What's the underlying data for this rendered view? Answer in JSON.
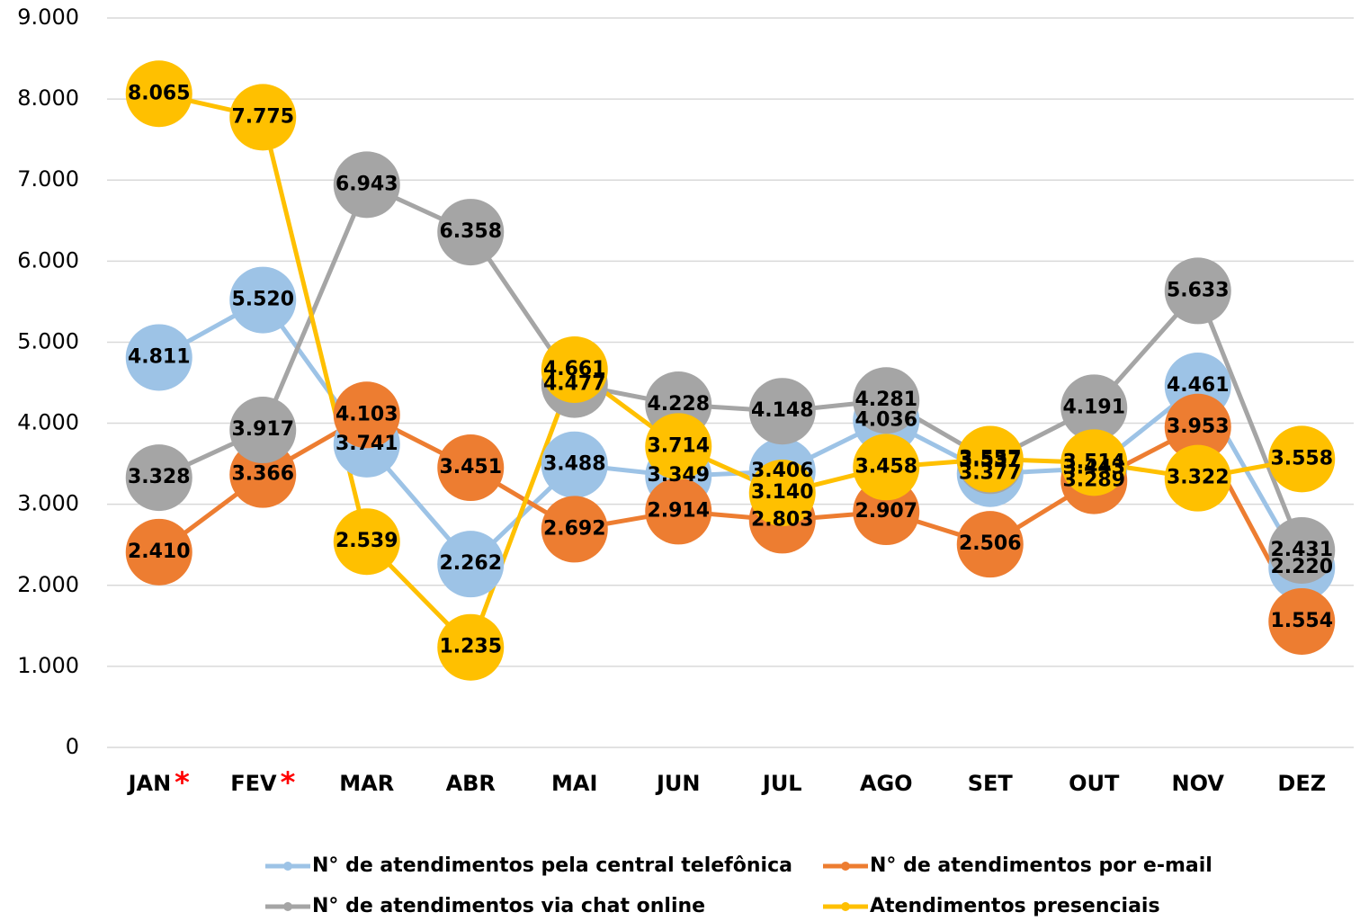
{
  "chart_data": {
    "type": "line",
    "categories": [
      "JAN",
      "FEV",
      "MAR",
      "ABR",
      "MAI",
      "JUN",
      "JUL",
      "AGO",
      "SET",
      "OUT",
      "NOV",
      "DEZ"
    ],
    "category_notes": [
      "*",
      "*",
      null,
      null,
      null,
      null,
      null,
      null,
      null,
      null,
      null,
      null
    ],
    "category_note_color": "#ff0000",
    "series": [
      {
        "name": "N° de atendimentos pela central telefônica",
        "color": "#9dc3e6",
        "values": [
          4811,
          5520,
          3741,
          2262,
          3488,
          3349,
          3406,
          4036,
          3377,
          3443,
          4461,
          2220
        ],
        "value_labels": [
          "4.811",
          "5.520",
          "3.741",
          "2.262",
          "3.488",
          "3.349",
          "3.406",
          "4.036",
          "3.377",
          "3.443",
          "4.461",
          "2.220"
        ]
      },
      {
        "name": "N° de atendimentos por e-mail",
        "color": "#ed7d31",
        "values": [
          2410,
          3366,
          4103,
          3451,
          2692,
          2914,
          2803,
          2907,
          2506,
          3289,
          3953,
          1554
        ],
        "value_labels": [
          "2.410",
          "3.366",
          "4.103",
          "3.451",
          "2.692",
          "2.914",
          "2.803",
          "2.907",
          "2.506",
          "3.289",
          "3.953",
          "1.554"
        ]
      },
      {
        "name": "N° de atendimentos via chat online",
        "color": "#a5a5a5",
        "values": [
          3328,
          3917,
          6943,
          6358,
          4477,
          4228,
          4148,
          4281,
          3537,
          4191,
          5633,
          2431
        ],
        "value_labels": [
          "3.328",
          "3.917",
          "6.943",
          "6.358",
          "4.477",
          "4.228",
          "4.148",
          "4.281",
          "3.537",
          "4.191",
          "5.633",
          "2.431"
        ]
      },
      {
        "name": "Atendimentos presenciais",
        "color": "#ffc000",
        "values": [
          8065,
          7775,
          2539,
          1235,
          4661,
          3714,
          3140,
          3458,
          3557,
          3514,
          3322,
          3558
        ],
        "value_labels": [
          "8.065",
          "7.775",
          "2.539",
          "1.235",
          "4.661",
          "3.714",
          "3.140",
          "3.458",
          "3.557",
          "3.514",
          "3.322",
          "3.558"
        ]
      }
    ],
    "ylim": [
      0,
      9000
    ],
    "yticks": [
      {
        "value": 0,
        "label": "0"
      },
      {
        "value": 1000,
        "label": "1.000"
      },
      {
        "value": 2000,
        "label": "2.000"
      },
      {
        "value": 3000,
        "label": "3.000"
      },
      {
        "value": 4000,
        "label": "4.000"
      },
      {
        "value": 5000,
        "label": "5.000"
      },
      {
        "value": 6000,
        "label": "6.000"
      },
      {
        "value": 7000,
        "label": "7.000"
      },
      {
        "value": 8000,
        "label": "8.000"
      },
      {
        "value": 9000,
        "label": "9.000"
      }
    ],
    "grid": true,
    "legend": "bottom"
  }
}
